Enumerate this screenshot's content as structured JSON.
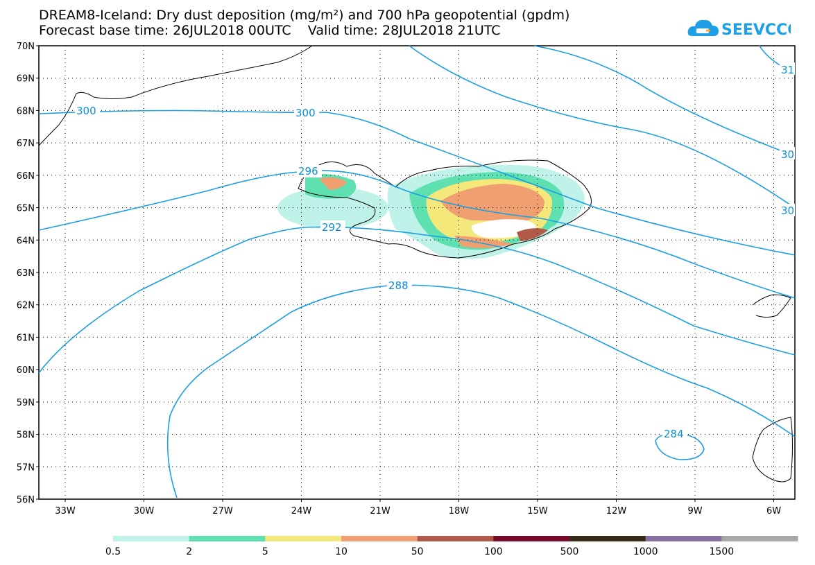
{
  "title": {
    "line1": "DREAM8-Iceland: Dry dust deposition (mg/m²) and 700 hPa geopotential (gpdm)",
    "line2": "Forecast base time: 26JUL2018 00UTC    Valid time: 28JUL2018 21UTC"
  },
  "logo": {
    "text": "SEEVCCC",
    "icon": "cloud-icon",
    "color": "#1ea0e6"
  },
  "axes": {
    "lat_labels": [
      "70N",
      "69N",
      "68N",
      "67N",
      "66N",
      "65N",
      "64N",
      "63N",
      "62N",
      "61N",
      "60N",
      "59N",
      "58N",
      "57N",
      "56N"
    ],
    "lon_labels": [
      "33W",
      "30W",
      "27W",
      "24W",
      "21W",
      "18W",
      "15W",
      "12W",
      "9W",
      "6W"
    ]
  },
  "contours": {
    "color": "#1a9ee6",
    "labels": [
      "300",
      "300",
      "296",
      "292",
      "288",
      "284",
      "31",
      "30",
      "30"
    ]
  },
  "legend": {
    "thresholds": [
      "0.5",
      "2",
      "5",
      "10",
      "50",
      "100",
      "500",
      "1000",
      "1500"
    ],
    "colors": [
      "#bff2e8",
      "#5fe0b0",
      "#f5e87a",
      "#f0a070",
      "#b05a4a",
      "#7a0a2a",
      "#3a2a1a",
      "#8a6ea0",
      "#a8a8a8"
    ]
  }
}
